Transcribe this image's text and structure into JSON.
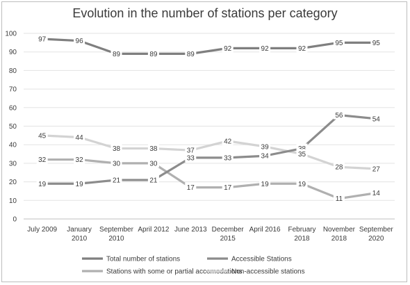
{
  "chart_data": {
    "type": "line",
    "title": "Evolution in the number of stations per category",
    "xlabel": "",
    "ylabel": "",
    "ylim": [
      0,
      100
    ],
    "yticks": [
      0,
      10,
      20,
      30,
      40,
      50,
      60,
      70,
      80,
      90,
      100
    ],
    "categories": [
      [
        "July 2009"
      ],
      [
        "January",
        "2010"
      ],
      [
        "September",
        "2010"
      ],
      [
        "April 2012"
      ],
      [
        "June 2013"
      ],
      [
        "December",
        "2015"
      ],
      [
        "April 2016"
      ],
      [
        "February",
        "2018"
      ],
      [
        "November",
        "2018"
      ],
      [
        "September",
        "2020"
      ]
    ],
    "grid": "horizontal",
    "legend_position": "bottom",
    "series": [
      {
        "name": "Total number of stations",
        "color": "#7f7f7f",
        "values": [
          97,
          96,
          89,
          89,
          89,
          92,
          92,
          92,
          95,
          95
        ]
      },
      {
        "name": "Accessible Stations",
        "color": "#8c8c8c",
        "values": [
          19,
          19,
          21,
          21,
          33,
          33,
          34,
          38,
          56,
          54
        ]
      },
      {
        "name": "Stations with some or partial accomodations",
        "color": "#b0b0b0",
        "values": [
          32,
          32,
          30,
          30,
          17,
          17,
          19,
          19,
          11,
          14
        ]
      },
      {
        "name": "Non-accessible stations",
        "color": "#d3d3d3",
        "values": [
          45,
          44,
          38,
          38,
          37,
          42,
          39,
          35,
          28,
          27
        ]
      }
    ]
  }
}
